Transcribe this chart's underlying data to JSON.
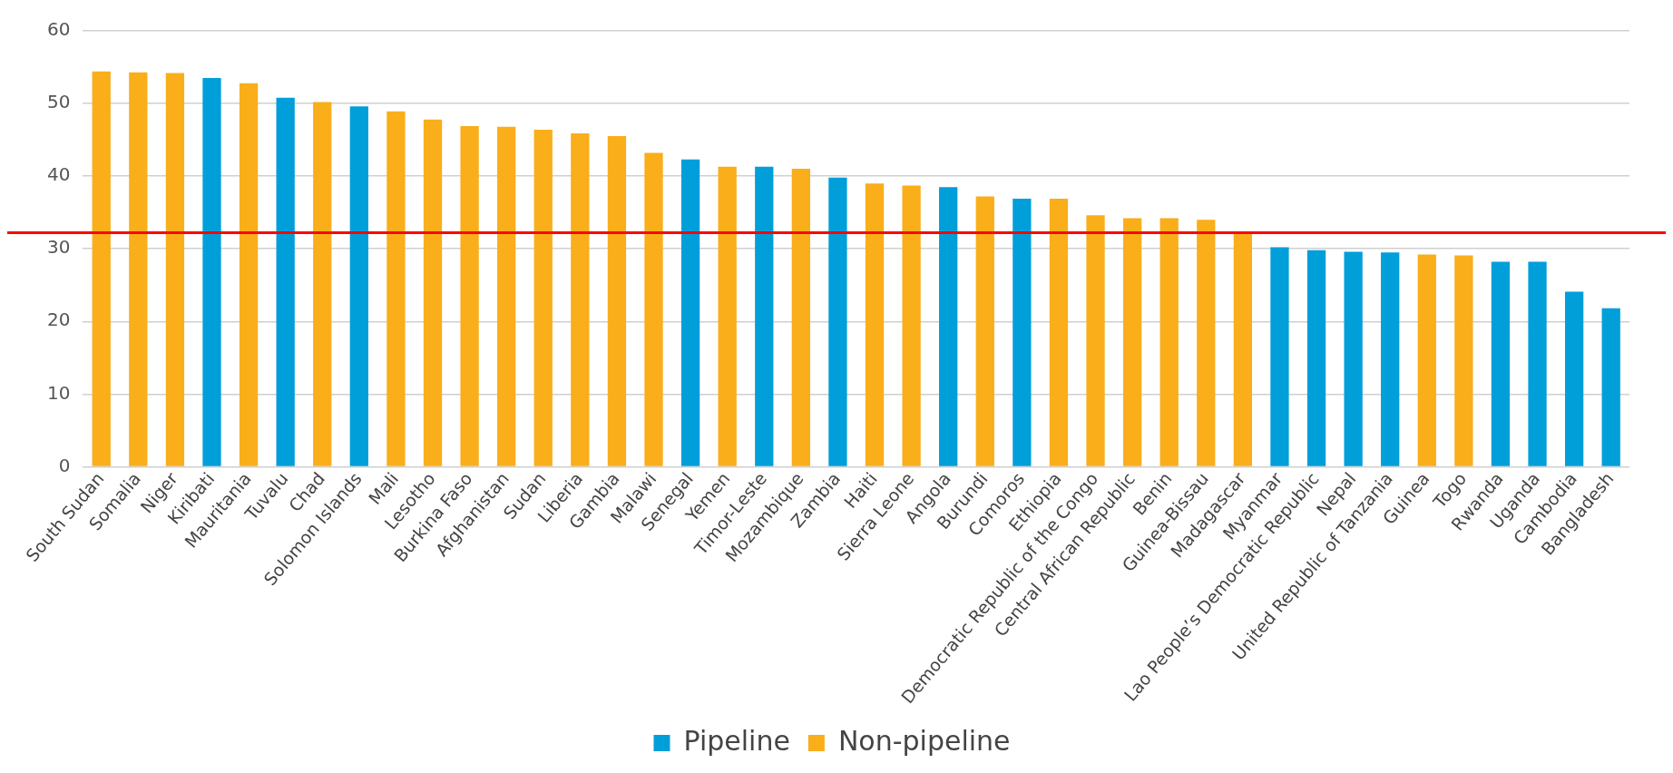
{
  "chart_data": {
    "type": "bar",
    "categories": [
      "South Sudan",
      "Somalia",
      "Niger",
      "Kiribati",
      "Mauritania",
      "Tuvalu",
      "Chad",
      "Solomon Islands",
      "Mali",
      "Lesotho",
      "Burkina Faso",
      "Afghanistan",
      "Sudan",
      "Liberia",
      "Gambia",
      "Malawi",
      "Senegal",
      "Yemen",
      "Timor-Leste",
      "Mozambique",
      "Zambia",
      "Haiti",
      "Sierra Leone",
      "Angola",
      "Burundi",
      "Comoros",
      "Ethiopia",
      "Democratic Republic of the Congo",
      "Central African Republic",
      "Benin",
      "Guinea-Bissau",
      "Madagascar",
      "Myanmar",
      "Lao People’s Democratic Republic",
      "Nepal",
      "United Republic of Tanzania",
      "Guinea",
      "Togo",
      "Rwanda",
      "Uganda",
      "Cambodia",
      "Bangladesh"
    ],
    "series": [
      {
        "name": "Pipeline",
        "color": "#009fda",
        "values": [
          null,
          null,
          null,
          53.5,
          null,
          50.8,
          null,
          49.6,
          null,
          null,
          null,
          null,
          null,
          null,
          null,
          null,
          42.3,
          null,
          41.3,
          null,
          39.8,
          null,
          null,
          38.5,
          null,
          36.9,
          null,
          null,
          null,
          null,
          null,
          null,
          30.2,
          29.8,
          29.6,
          29.5,
          null,
          null,
          28.2,
          28.2,
          24.1,
          21.8
        ]
      },
      {
        "name": "Non-pipeline",
        "color": "#f9ae1a",
        "values": [
          54.4,
          54.3,
          54.2,
          null,
          52.8,
          null,
          50.2,
          null,
          48.9,
          47.8,
          46.9,
          46.8,
          46.4,
          45.9,
          45.5,
          43.2,
          null,
          41.3,
          null,
          41.0,
          null,
          39.0,
          38.7,
          null,
          37.2,
          null,
          36.9,
          34.6,
          34.2,
          34.2,
          34.0,
          32.3,
          null,
          null,
          null,
          null,
          29.2,
          29.1,
          null,
          null,
          null,
          null
        ]
      }
    ],
    "ylim": [
      0,
      60
    ],
    "yticks": [
      0,
      10,
      20,
      30,
      40,
      50,
      60
    ],
    "grid": "y",
    "legend": "bottom",
    "ref_lines": [
      {
        "axis": "y",
        "value": 32.2,
        "color": "#ff0000"
      }
    ]
  }
}
